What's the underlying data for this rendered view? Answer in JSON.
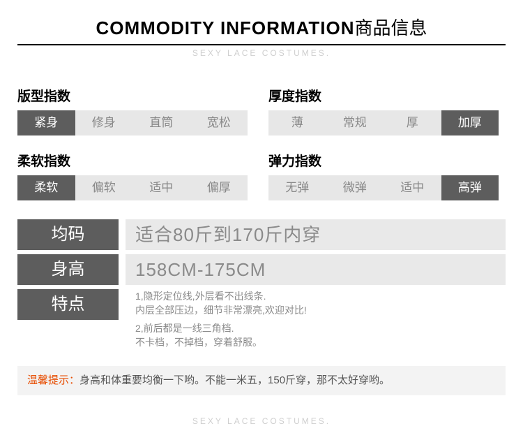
{
  "header": {
    "title_en": "COMMODITY INFORMATION",
    "title_cn": "商品信息",
    "subtitle": "SEXY LACE COSTUMES."
  },
  "indexes": {
    "fit": {
      "label": "版型指数",
      "options": [
        "紧身",
        "修身",
        "直筒",
        "宽松"
      ],
      "selected": 0
    },
    "thickness": {
      "label": "厚度指数",
      "options": [
        "薄",
        "常规",
        "厚",
        "加厚"
      ],
      "selected": 3
    },
    "softness": {
      "label": "柔软指数",
      "options": [
        "柔软",
        "偏软",
        "适中",
        "偏厚"
      ],
      "selected": 0
    },
    "elasticity": {
      "label": "弹力指数",
      "options": [
        "无弹",
        "微弹",
        "适中",
        "高弹"
      ],
      "selected": 3
    }
  },
  "info": {
    "size_label": "均码",
    "size_value": "适合80斤到170斤内穿",
    "height_label": "身高",
    "height_value": "158CM-175CM",
    "feature_label": "特点",
    "feature_1a": "1,隐形定位线,外层看不出线条.",
    "feature_1b": "内层全部压边，细节非常漂亮,欢迎对比!",
    "feature_2a": "2,前后都是一线三角档.",
    "feature_2b": "不卡档，不掉档，穿着舒服。"
  },
  "tip": {
    "label": "温馨提示：",
    "text": "身高和体重要均衡一下哟。不能一米五，150斤穿，那不太好穿哟。"
  },
  "footer": "SEXY LACE COSTUMES.",
  "colors": {
    "selected_bg": "#5d5d5d",
    "unselected_bg": "#e7e7e7",
    "tip_label": "#e74c00"
  }
}
